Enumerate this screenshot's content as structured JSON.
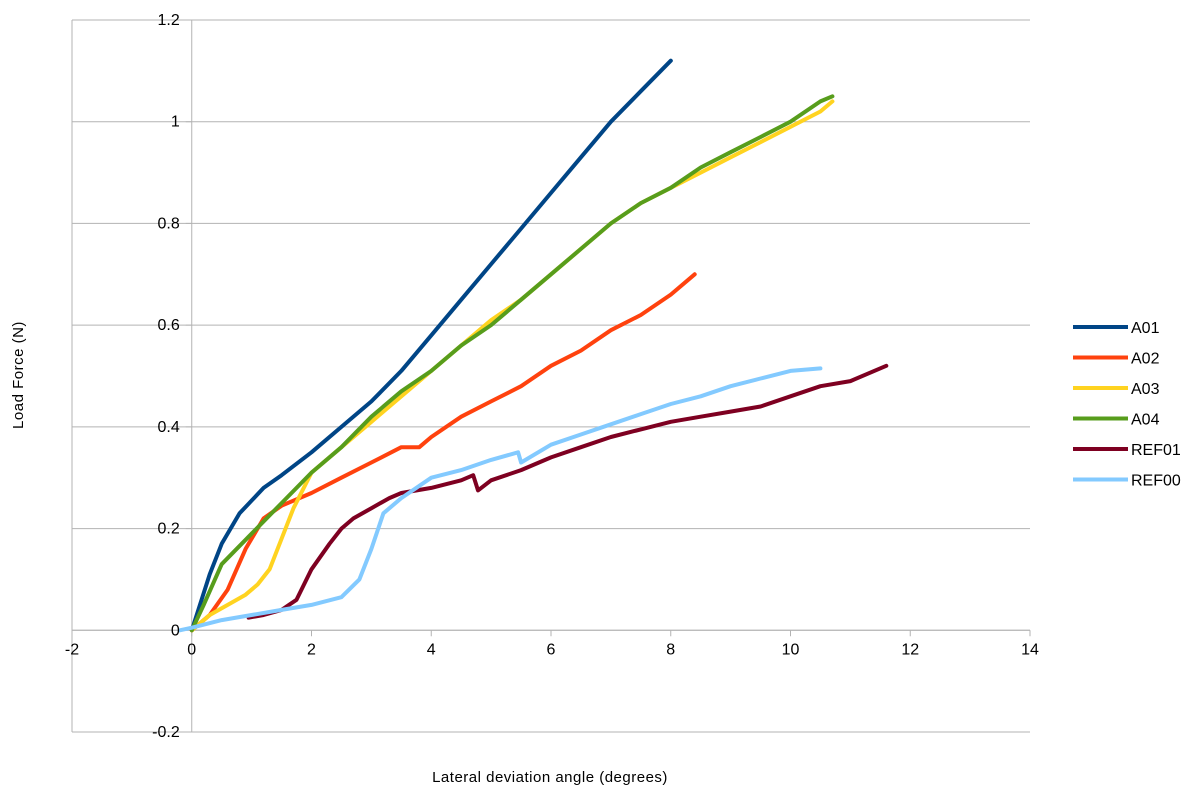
{
  "chart_data": {
    "type": "line",
    "xlabel": "Lateral deviation angle (degrees)",
    "ylabel": "Load Force (N)",
    "xlim": [
      -2,
      14
    ],
    "ylim": [
      -0.2,
      1.2
    ],
    "x_ticks": [
      -2,
      0,
      2,
      4,
      6,
      8,
      10,
      12,
      14
    ],
    "y_ticks": [
      -0.2,
      0,
      0.2,
      0.4,
      0.6,
      0.8,
      1,
      1.2
    ],
    "grid": "horizontal",
    "legend_position": "right",
    "series": [
      {
        "name": "A01",
        "color": "#004586",
        "points": [
          [
            0,
            0
          ],
          [
            0.3,
            0.11
          ],
          [
            0.5,
            0.17
          ],
          [
            0.8,
            0.23
          ],
          [
            1.2,
            0.28
          ],
          [
            1.5,
            0.305
          ],
          [
            2,
            0.35
          ],
          [
            2.5,
            0.4
          ],
          [
            3,
            0.45
          ],
          [
            3.5,
            0.51
          ],
          [
            4,
            0.58
          ],
          [
            4.5,
            0.65
          ],
          [
            5,
            0.72
          ],
          [
            5.5,
            0.79
          ],
          [
            6,
            0.86
          ],
          [
            6.5,
            0.93
          ],
          [
            7,
            1.0
          ],
          [
            7.5,
            1.06
          ],
          [
            8,
            1.12
          ]
        ]
      },
      {
        "name": "A02",
        "color": "#ff420e",
        "points": [
          [
            0,
            0
          ],
          [
            0.3,
            0.03
          ],
          [
            0.6,
            0.08
          ],
          [
            0.9,
            0.16
          ],
          [
            1.2,
            0.22
          ],
          [
            1.5,
            0.245
          ],
          [
            2,
            0.27
          ],
          [
            2.5,
            0.3
          ],
          [
            3,
            0.33
          ],
          [
            3.5,
            0.36
          ],
          [
            3.8,
            0.36
          ],
          [
            4,
            0.38
          ],
          [
            4.5,
            0.42
          ],
          [
            5,
            0.45
          ],
          [
            5.5,
            0.48
          ],
          [
            6,
            0.52
          ],
          [
            6.5,
            0.55
          ],
          [
            7,
            0.59
          ],
          [
            7.5,
            0.62
          ],
          [
            8,
            0.66
          ],
          [
            8.4,
            0.7
          ]
        ]
      },
      {
        "name": "A03",
        "color": "#ffd320",
        "points": [
          [
            0,
            0
          ],
          [
            0.3,
            0.03
          ],
          [
            0.6,
            0.05
          ],
          [
            0.9,
            0.07
          ],
          [
            1.1,
            0.09
          ],
          [
            1.3,
            0.12
          ],
          [
            1.5,
            0.18
          ],
          [
            1.7,
            0.24
          ],
          [
            2,
            0.31
          ],
          [
            2.5,
            0.36
          ],
          [
            3,
            0.41
          ],
          [
            3.5,
            0.46
          ],
          [
            4,
            0.51
          ],
          [
            4.5,
            0.56
          ],
          [
            5,
            0.61
          ],
          [
            5.5,
            0.65
          ],
          [
            6,
            0.7
          ],
          [
            6.5,
            0.75
          ],
          [
            7,
            0.8
          ],
          [
            7.5,
            0.84
          ],
          [
            8,
            0.87
          ],
          [
            8.5,
            0.9
          ],
          [
            9,
            0.93
          ],
          [
            9.5,
            0.96
          ],
          [
            10,
            0.99
          ],
          [
            10.5,
            1.02
          ],
          [
            10.7,
            1.04
          ]
        ]
      },
      {
        "name": "A04",
        "color": "#579d1c",
        "points": [
          [
            0,
            0
          ],
          [
            0.2,
            0.05
          ],
          [
            0.5,
            0.13
          ],
          [
            1,
            0.19
          ],
          [
            1.5,
            0.25
          ],
          [
            2,
            0.31
          ],
          [
            2.5,
            0.36
          ],
          [
            3,
            0.42
          ],
          [
            3.5,
            0.47
          ],
          [
            4,
            0.51
          ],
          [
            4.5,
            0.56
          ],
          [
            5,
            0.6
          ],
          [
            5.5,
            0.65
          ],
          [
            6,
            0.7
          ],
          [
            6.5,
            0.75
          ],
          [
            7,
            0.8
          ],
          [
            7.5,
            0.84
          ],
          [
            8,
            0.87
          ],
          [
            8.5,
            0.91
          ],
          [
            9,
            0.94
          ],
          [
            9.5,
            0.97
          ],
          [
            10,
            1.0
          ],
          [
            10.5,
            1.04
          ],
          [
            10.7,
            1.05
          ]
        ]
      },
      {
        "name": "REF01",
        "color": "#7e0021",
        "points": [
          [
            0.95,
            0.025
          ],
          [
            1.2,
            0.03
          ],
          [
            1.5,
            0.04
          ],
          [
            1.75,
            0.06
          ],
          [
            2,
            0.12
          ],
          [
            2.3,
            0.17
          ],
          [
            2.5,
            0.2
          ],
          [
            2.7,
            0.22
          ],
          [
            3,
            0.24
          ],
          [
            3.3,
            0.26
          ],
          [
            3.5,
            0.27
          ],
          [
            4,
            0.28
          ],
          [
            4.5,
            0.295
          ],
          [
            4.7,
            0.305
          ],
          [
            4.78,
            0.275
          ],
          [
            5,
            0.295
          ],
          [
            5.5,
            0.315
          ],
          [
            6,
            0.34
          ],
          [
            6.5,
            0.36
          ],
          [
            7,
            0.38
          ],
          [
            7.5,
            0.395
          ],
          [
            8,
            0.41
          ],
          [
            8.5,
            0.42
          ],
          [
            9,
            0.43
          ],
          [
            9.5,
            0.44
          ],
          [
            10,
            0.46
          ],
          [
            10.5,
            0.48
          ],
          [
            11,
            0.49
          ],
          [
            11.6,
            0.52
          ]
        ]
      },
      {
        "name": "REF00",
        "color": "#83caff",
        "points": [
          [
            -0.2,
            0
          ],
          [
            0,
            0.005
          ],
          [
            0.5,
            0.02
          ],
          [
            1,
            0.03
          ],
          [
            1.5,
            0.04
          ],
          [
            2,
            0.05
          ],
          [
            2.5,
            0.065
          ],
          [
            2.8,
            0.1
          ],
          [
            3,
            0.16
          ],
          [
            3.2,
            0.23
          ],
          [
            3.5,
            0.26
          ],
          [
            4,
            0.3
          ],
          [
            4.5,
            0.315
          ],
          [
            5,
            0.335
          ],
          [
            5.45,
            0.35
          ],
          [
            5.5,
            0.33
          ],
          [
            6,
            0.365
          ],
          [
            6.5,
            0.385
          ],
          [
            7,
            0.405
          ],
          [
            7.5,
            0.425
          ],
          [
            8,
            0.445
          ],
          [
            8.5,
            0.46
          ],
          [
            9,
            0.48
          ],
          [
            9.5,
            0.495
          ],
          [
            10,
            0.51
          ],
          [
            10.5,
            0.515
          ]
        ]
      }
    ]
  }
}
